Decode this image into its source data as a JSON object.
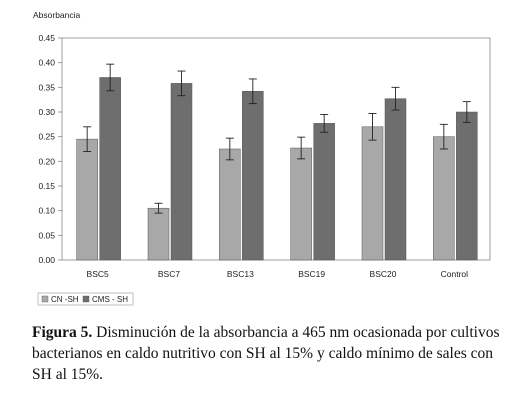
{
  "chart_data": {
    "type": "bar",
    "ylabel": "Absorbancia",
    "ylim": [
      0,
      0.45
    ],
    "yticks": [
      "0.00",
      "0.05",
      "0.10",
      "0.15",
      "0.20",
      "0.25",
      "0.30",
      "0.35",
      "0.40",
      "0.45"
    ],
    "categories": [
      "BSC5",
      "BSC7",
      "BSC13",
      "BSC19",
      "BSC20",
      "Control"
    ],
    "series": [
      {
        "name": "CN -SH",
        "color": "#a8a8a8",
        "values": [
          0.245,
          0.105,
          0.225,
          0.227,
          0.27,
          0.25
        ],
        "errors": [
          0.025,
          0.01,
          0.022,
          0.022,
          0.027,
          0.025
        ]
      },
      {
        "name": "CMS - SH",
        "color": "#6e6e6e",
        "values": [
          0.37,
          0.358,
          0.342,
          0.277,
          0.327,
          0.3
        ],
        "errors": [
          0.027,
          0.025,
          0.025,
          0.018,
          0.023,
          0.021
        ]
      }
    ],
    "legend": "bottom-left",
    "grid": false
  },
  "caption": {
    "label": "Figura 5.",
    "text": " Disminución de la absorbancia a 465 nm ocasionada por cultivos bacterianos en caldo nutritivo con SH al 15% y caldo mínimo de sales con SH al 15%."
  }
}
